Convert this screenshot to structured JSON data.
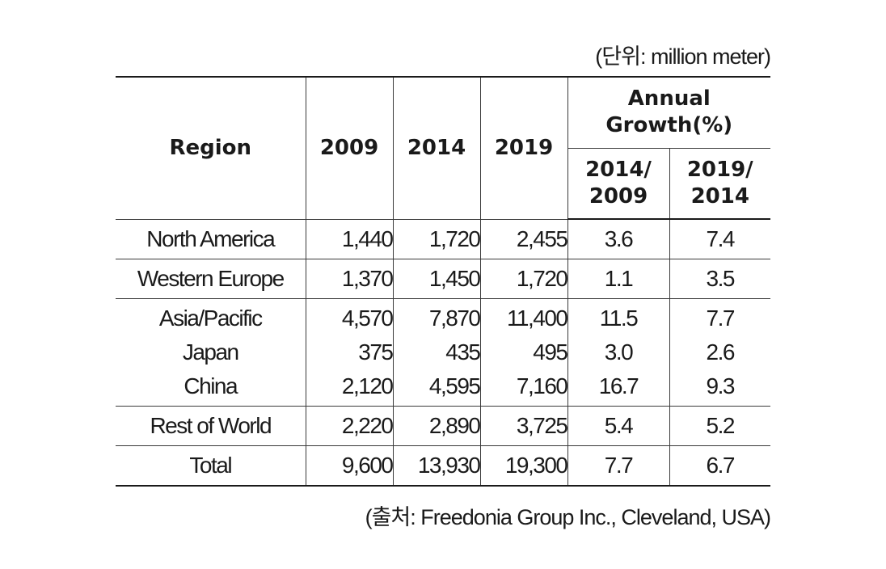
{
  "unit_note": "(단위: million meter)",
  "source_note": "(출처: Freedonia Group Inc., Cleveland, USA)",
  "headers": {
    "region": "Region",
    "y2009": "2009",
    "y2014": "2014",
    "y2019": "2019",
    "annual_growth": "Annual Growth(%)",
    "g1": "2014/ 2009",
    "g2": "2019/ 2014"
  },
  "rows": {
    "north_america": {
      "region": "North America",
      "y2009": "1,440",
      "y2014": "1,720",
      "y2019": "2,455",
      "g1": "3.6",
      "g2": "7.4"
    },
    "western_europe": {
      "region": "Western Europe",
      "y2009": "1,370",
      "y2014": "1,450",
      "y2019": "1,720",
      "g1": "1.1",
      "g2": "3.5"
    },
    "asia_pacific": {
      "region": "Asia/Pacific",
      "y2009": "4,570",
      "y2014": "7,870",
      "y2019": "11,400",
      "g1": "11.5",
      "g2": "7.7"
    },
    "japan": {
      "region": "Japan",
      "y2009": "375",
      "y2014": "435",
      "y2019": "495",
      "g1": "3.0",
      "g2": "2.6"
    },
    "china": {
      "region": "China",
      "y2009": "2,120",
      "y2014": "4,595",
      "y2019": "7,160",
      "g1": "16.7",
      "g2": "9.3"
    },
    "rest_of_world": {
      "region": "Rest of World",
      "y2009": "2,220",
      "y2014": "2,890",
      "y2019": "3,725",
      "g1": "5.4",
      "g2": "5.2"
    },
    "total": {
      "region": "Total",
      "y2009": "9,600",
      "y2014": "13,930",
      "y2019": "19,300",
      "g1": "7.7",
      "g2": "6.7"
    }
  }
}
